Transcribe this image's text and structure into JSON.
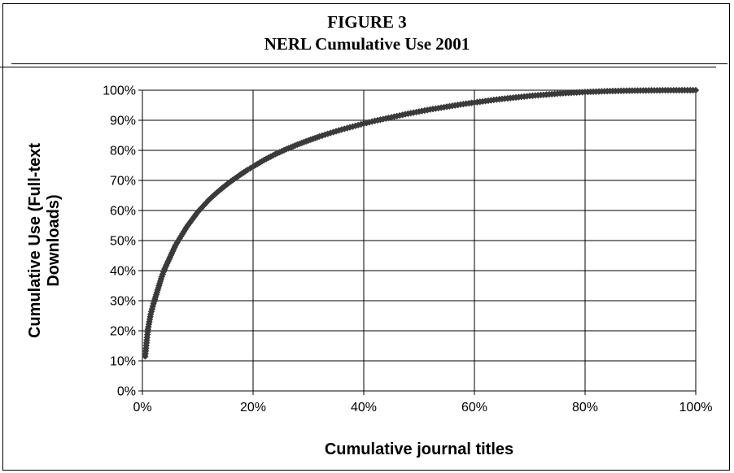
{
  "figure_label": "FIGURE 3",
  "chart_data": {
    "type": "scatter",
    "title": "NERL Cumulative Use 2001",
    "xlabel": "Cumulative journal titles",
    "ylabel_lines": [
      "Cumulative Use (Full-text",
      "Downloads)"
    ],
    "xlim": [
      0,
      100
    ],
    "ylim": [
      0,
      100
    ],
    "x_ticks": [
      "0%",
      "20%",
      "40%",
      "60%",
      "80%",
      "100%"
    ],
    "y_ticks": [
      "0%",
      "10%",
      "20%",
      "30%",
      "40%",
      "50%",
      "60%",
      "70%",
      "80%",
      "90%",
      "100%"
    ],
    "grid": true,
    "marker_color": "#3a3a3a",
    "series": [
      {
        "marker": "diamond",
        "points": [
          [
            0.5,
            11.5
          ],
          [
            1.0,
            20.5
          ],
          [
            1.5,
            25.5
          ],
          [
            2.0,
            29.0
          ],
          [
            2.5,
            32.0
          ],
          [
            3.0,
            35.0
          ],
          [
            3.5,
            38.0
          ],
          [
            4.0,
            40.5
          ],
          [
            4.5,
            42.5
          ],
          [
            5.0,
            44.5
          ],
          [
            5.5,
            46.5
          ],
          [
            6.0,
            48.5
          ],
          [
            7,
            51.5
          ],
          [
            8,
            54.5
          ],
          [
            9,
            57
          ],
          [
            10,
            59.5
          ],
          [
            11,
            61.5
          ],
          [
            12,
            63.5
          ],
          [
            13,
            65.2
          ],
          [
            14,
            66.8
          ],
          [
            15,
            68.3
          ],
          [
            16,
            69.7
          ],
          [
            17,
            71
          ],
          [
            18,
            72.3
          ],
          [
            19,
            73.5
          ],
          [
            20,
            74.6
          ],
          [
            22,
            76.8
          ],
          [
            24,
            78.7
          ],
          [
            26,
            80.4
          ],
          [
            28,
            81.9
          ],
          [
            30,
            83.3
          ],
          [
            32,
            84.6
          ],
          [
            34,
            85.8
          ],
          [
            36,
            86.9
          ],
          [
            38,
            87.9
          ],
          [
            40,
            88.9
          ],
          [
            42,
            89.8
          ],
          [
            44,
            90.6
          ],
          [
            46,
            91.4
          ],
          [
            48,
            92.2
          ],
          [
            50,
            92.9
          ],
          [
            52,
            93.6
          ],
          [
            54,
            94.2
          ],
          [
            56,
            94.8
          ],
          [
            58,
            95.4
          ],
          [
            60,
            95.9
          ],
          [
            62,
            96.4
          ],
          [
            64,
            96.9
          ],
          [
            66,
            97.3
          ],
          [
            68,
            97.7
          ],
          [
            70,
            98.1
          ],
          [
            72,
            98.4
          ],
          [
            74,
            98.7
          ],
          [
            76,
            99.0
          ],
          [
            78,
            99.2
          ],
          [
            80,
            99.4
          ],
          [
            82,
            99.55
          ],
          [
            84,
            99.68
          ],
          [
            86,
            99.78
          ],
          [
            88,
            99.85
          ],
          [
            90,
            99.9
          ],
          [
            92,
            99.94
          ],
          [
            94,
            99.97
          ],
          [
            96,
            99.99
          ],
          [
            98,
            100
          ],
          [
            100,
            100
          ]
        ]
      }
    ]
  }
}
